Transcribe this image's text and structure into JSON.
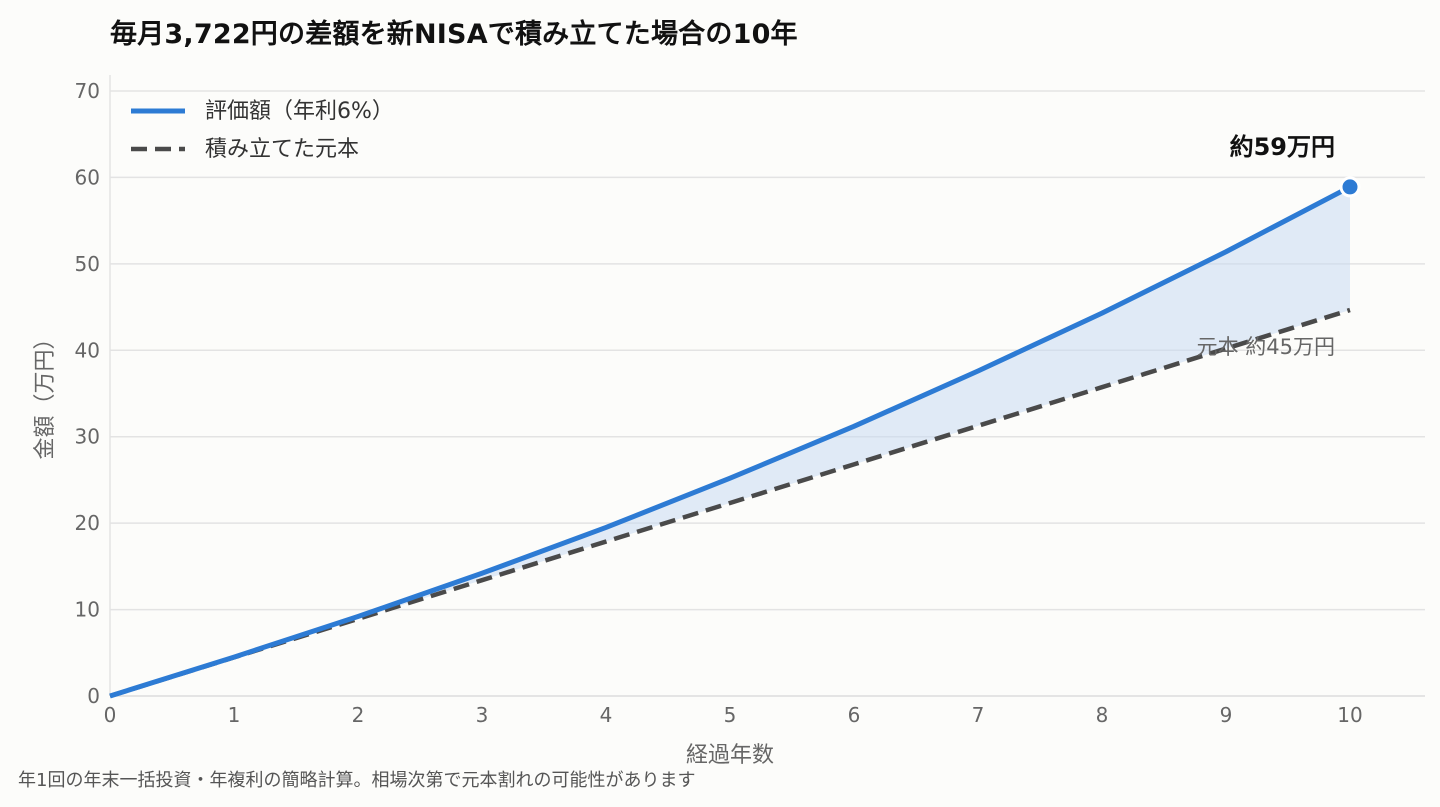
{
  "title": "毎月3,722円の差額を新NISAで積み立てた場合の10年",
  "footnote": "年1回の年末一括投資・年複利の簡略計算。相場次第で元本割れの可能性があります",
  "colors": {
    "valuation": "#2d7bd4",
    "principal": "#4a4a4a",
    "fill": "#c9daf2",
    "grid": "#e3e3e3"
  },
  "chart_data": {
    "type": "line",
    "title": "毎月3,722円の差額を新NISAで積み立てた場合の10年",
    "xlabel": "経過年数",
    "ylabel": "金額（万円）",
    "xlim": [
      0,
      10
    ],
    "ylim": [
      0,
      70
    ],
    "x_ticks": [
      0,
      1,
      2,
      3,
      4,
      5,
      6,
      7,
      8,
      9,
      10
    ],
    "y_ticks": [
      0,
      10,
      20,
      30,
      40,
      50,
      60,
      70
    ],
    "grid": true,
    "legend_position": "top-left",
    "x": [
      0,
      1,
      2,
      3,
      4,
      5,
      6,
      7,
      8,
      9,
      10
    ],
    "series": [
      {
        "name": "評価額（年利6%）",
        "style": "solid",
        "values": [
          0,
          4.5,
          9.2,
          14.2,
          19.5,
          25.2,
          31.2,
          37.6,
          44.3,
          51.4,
          58.9
        ]
      },
      {
        "name": "積み立てた元本",
        "style": "dashed",
        "values": [
          0,
          4.47,
          8.93,
          13.4,
          17.87,
          22.33,
          26.8,
          31.26,
          35.73,
          40.2,
          44.66
        ]
      }
    ],
    "annotations": {
      "end_value": "約59万円",
      "principal_value": "元本 約45万円"
    }
  }
}
